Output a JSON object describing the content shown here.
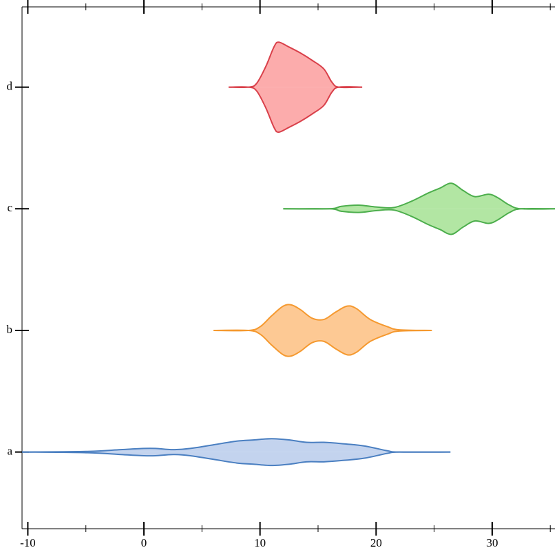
{
  "chart_data": {
    "type": "violin",
    "categories": [
      "a",
      "b",
      "c",
      "d"
    ],
    "xlim": [
      -10.5,
      35.4
    ],
    "xticks": [
      -10,
      0,
      10,
      20,
      30
    ],
    "xminor_ticks": [
      -5,
      5,
      15,
      25,
      35
    ],
    "ylim": [
      -0.63,
      3.66
    ],
    "series": [
      {
        "name": "a",
        "color": "#4a7fc1",
        "fill": "#c3d3ee",
        "x": [
          -10.5,
          -5,
          -2,
          0,
          1,
          2.5,
          4,
          6,
          8,
          9.5,
          11,
          12.5,
          14,
          15.5,
          17,
          19,
          21,
          22,
          26.4
        ],
        "values": [
          0,
          0.005,
          0.02,
          0.03,
          0.03,
          0.02,
          0.03,
          0.06,
          0.09,
          0.1,
          0.11,
          0.1,
          0.08,
          0.08,
          0.07,
          0.05,
          0.01,
          0,
          0
        ]
      },
      {
        "name": "b",
        "color": "#f5992f",
        "fill": "#fdc994",
        "x": [
          6,
          9,
          10,
          11,
          12,
          12.7,
          13.5,
          14.5,
          15.5,
          16.5,
          17.5,
          18.3,
          19.5,
          21,
          22,
          24.8
        ],
        "values": [
          0,
          0,
          0.03,
          0.12,
          0.2,
          0.21,
          0.17,
          0.1,
          0.09,
          0.15,
          0.2,
          0.18,
          0.09,
          0.03,
          0.005,
          0
        ]
      },
      {
        "name": "c",
        "color": "#4cae4c",
        "fill": "#b2e6a3",
        "x": [
          12,
          16,
          17,
          18.5,
          20,
          21.5,
          23,
          24.5,
          25.5,
          26.5,
          27.5,
          28.5,
          29.7,
          30.5,
          31.5,
          32.5,
          35.4
        ],
        "values": [
          0,
          0,
          0.02,
          0.03,
          0.015,
          0.01,
          0.06,
          0.13,
          0.17,
          0.21,
          0.15,
          0.1,
          0.12,
          0.09,
          0.03,
          0,
          0
        ]
      },
      {
        "name": "d",
        "color": "#d9404a",
        "fill": "#fcacac",
        "x": [
          7.3,
          9,
          9.7,
          10.5,
          11.2,
          11.6,
          12.5,
          13.5,
          14.5,
          15.5,
          16.2,
          16.8,
          18.8
        ],
        "values": [
          0,
          0,
          0.03,
          0.17,
          0.33,
          0.37,
          0.33,
          0.28,
          0.22,
          0.15,
          0.04,
          0,
          0
        ]
      }
    ]
  }
}
